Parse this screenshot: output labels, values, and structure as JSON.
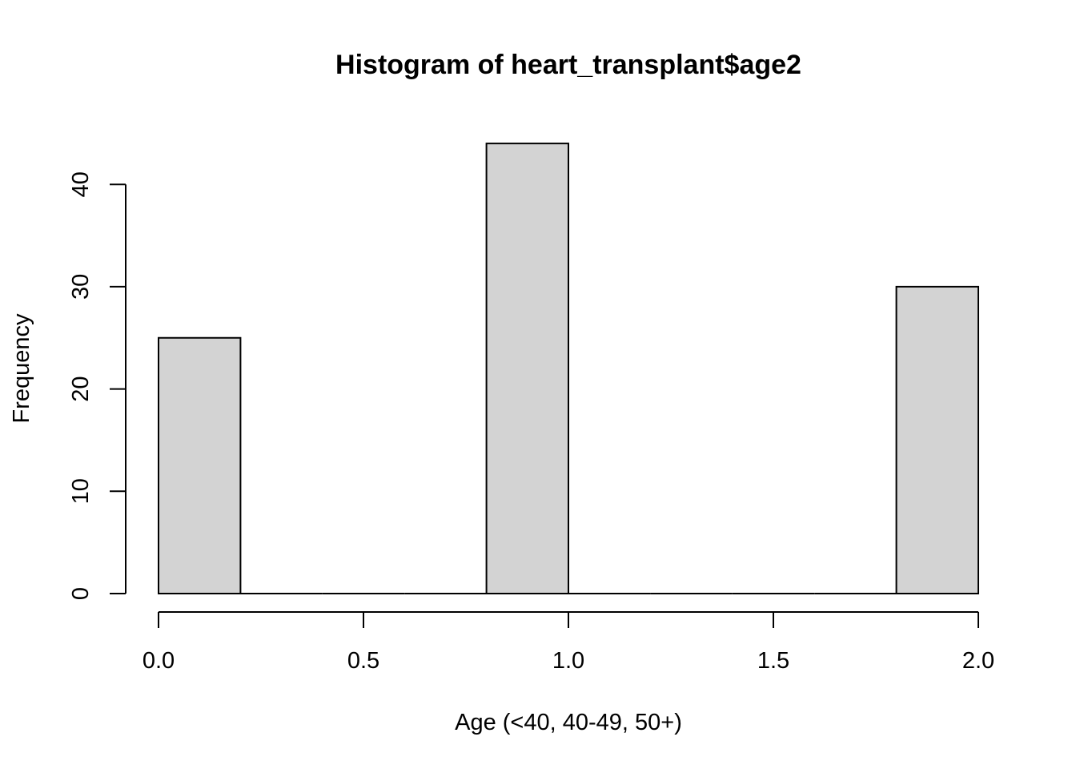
{
  "chart_data": {
    "type": "bar",
    "title": "Histogram of heart_transplant$age2",
    "xlabel": "Age (<40, 40-49, 50+)",
    "ylabel": "Frequency",
    "xlim": [
      0,
      2
    ],
    "ylim": [
      0,
      44
    ],
    "x_ticks": [
      0,
      0.5,
      1,
      1.5,
      2
    ],
    "x_tick_labels": [
      "0.0",
      "0.5",
      "1.0",
      "1.5",
      "2.0"
    ],
    "y_ticks": [
      0,
      10,
      20,
      30,
      40
    ],
    "y_tick_labels": [
      "0",
      "10",
      "20",
      "30",
      "40"
    ],
    "bins": [
      {
        "start": 0.0,
        "end": 0.2,
        "count": 25
      },
      {
        "start": 0.2,
        "end": 0.4,
        "count": 0
      },
      {
        "start": 0.4,
        "end": 0.6,
        "count": 0
      },
      {
        "start": 0.6,
        "end": 0.8,
        "count": 0
      },
      {
        "start": 0.8,
        "end": 1.0,
        "count": 44
      },
      {
        "start": 1.0,
        "end": 1.2,
        "count": 0
      },
      {
        "start": 1.2,
        "end": 1.4,
        "count": 0
      },
      {
        "start": 1.4,
        "end": 1.6,
        "count": 0
      },
      {
        "start": 1.6,
        "end": 1.8,
        "count": 0
      },
      {
        "start": 1.8,
        "end": 2.0,
        "count": 30
      }
    ],
    "colors": {
      "bar_fill": "#d3d3d3",
      "bar_stroke": "#000000"
    },
    "grid": false,
    "legend": "none"
  }
}
